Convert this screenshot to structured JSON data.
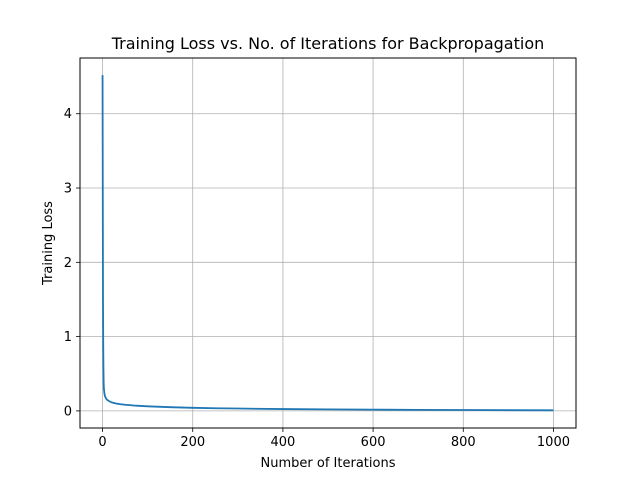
{
  "chart_data": {
    "type": "line",
    "title": "Training Loss vs. No. of Iterations for Backpropagation",
    "xlabel": "Number of Iterations",
    "ylabel": "Training Loss",
    "xlim": [
      -50,
      1050
    ],
    "ylim": [
      -0.23,
      4.75
    ],
    "xticks": [
      0,
      200,
      400,
      600,
      800,
      1000
    ],
    "yticks": [
      0,
      1,
      2,
      3,
      4
    ],
    "grid": true,
    "line_color": "#1f77b4",
    "grid_color": "#b0b0b0",
    "series": [
      {
        "x": [
          0,
          0.5,
          1,
          1.5,
          2,
          2.5,
          3,
          4,
          5,
          6,
          8,
          10,
          15,
          20,
          30,
          40,
          50,
          75,
          100,
          150,
          200,
          250,
          300,
          400,
          500,
          600,
          700,
          800,
          900,
          1000
        ],
        "values": [
          4.52,
          3.0,
          1.5,
          0.9,
          0.55,
          0.38,
          0.3,
          0.24,
          0.21,
          0.19,
          0.165,
          0.15,
          0.13,
          0.115,
          0.1,
          0.09,
          0.083,
          0.07,
          0.062,
          0.05,
          0.042,
          0.036,
          0.032,
          0.025,
          0.021,
          0.017,
          0.014,
          0.012,
          0.01,
          0.008
        ]
      }
    ]
  }
}
